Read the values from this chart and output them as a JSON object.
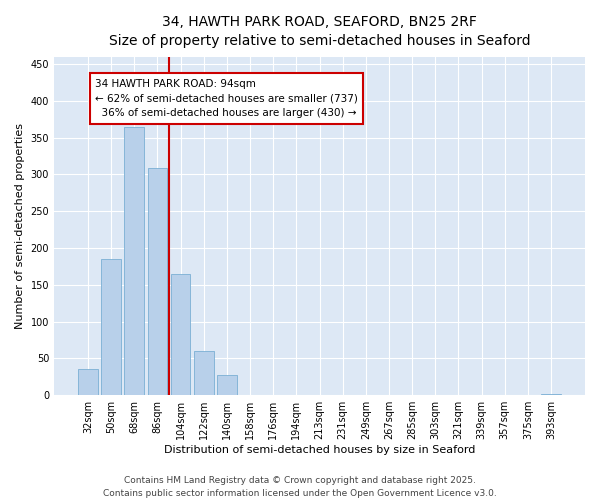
{
  "title_line1": "34, HAWTH PARK ROAD, SEAFORD, BN25 2RF",
  "title_line2": "Size of property relative to semi-detached houses in Seaford",
  "xlabel": "Distribution of semi-detached houses by size in Seaford",
  "ylabel": "Number of semi-detached properties",
  "categories": [
    "32sqm",
    "50sqm",
    "68sqm",
    "86sqm",
    "104sqm",
    "122sqm",
    "140sqm",
    "158sqm",
    "176sqm",
    "194sqm",
    "213sqm",
    "231sqm",
    "249sqm",
    "267sqm",
    "285sqm",
    "303sqm",
    "321sqm",
    "339sqm",
    "357sqm",
    "375sqm",
    "393sqm"
  ],
  "values": [
    35,
    185,
    365,
    308,
    165,
    60,
    28,
    0,
    0,
    0,
    0,
    0,
    0,
    0,
    0,
    0,
    0,
    0,
    0,
    0,
    1
  ],
  "bar_color": "#b8d0ea",
  "bar_edge_color": "#7bafd4",
  "vline_color": "#cc0000",
  "vline_xindex": 3.5,
  "annotation_title": "34 HAWTH PARK ROAD: 94sqm",
  "annotation_line2": "← 62% of semi-detached houses are smaller (737)",
  "annotation_line3": "  36% of semi-detached houses are larger (430) →",
  "annotation_box_color": "#cc0000",
  "annotation_bg": "#ffffff",
  "ylim": [
    0,
    460
  ],
  "yticks": [
    0,
    50,
    100,
    150,
    200,
    250,
    300,
    350,
    400,
    450
  ],
  "background_color": "#dde8f5",
  "footer_line1": "Contains HM Land Registry data © Crown copyright and database right 2025.",
  "footer_line2": "Contains public sector information licensed under the Open Government Licence v3.0.",
  "title_fontsize": 10,
  "subtitle_fontsize": 9,
  "axis_label_fontsize": 8,
  "tick_fontsize": 7,
  "annotation_fontsize": 7.5,
  "footer_fontsize": 6.5
}
